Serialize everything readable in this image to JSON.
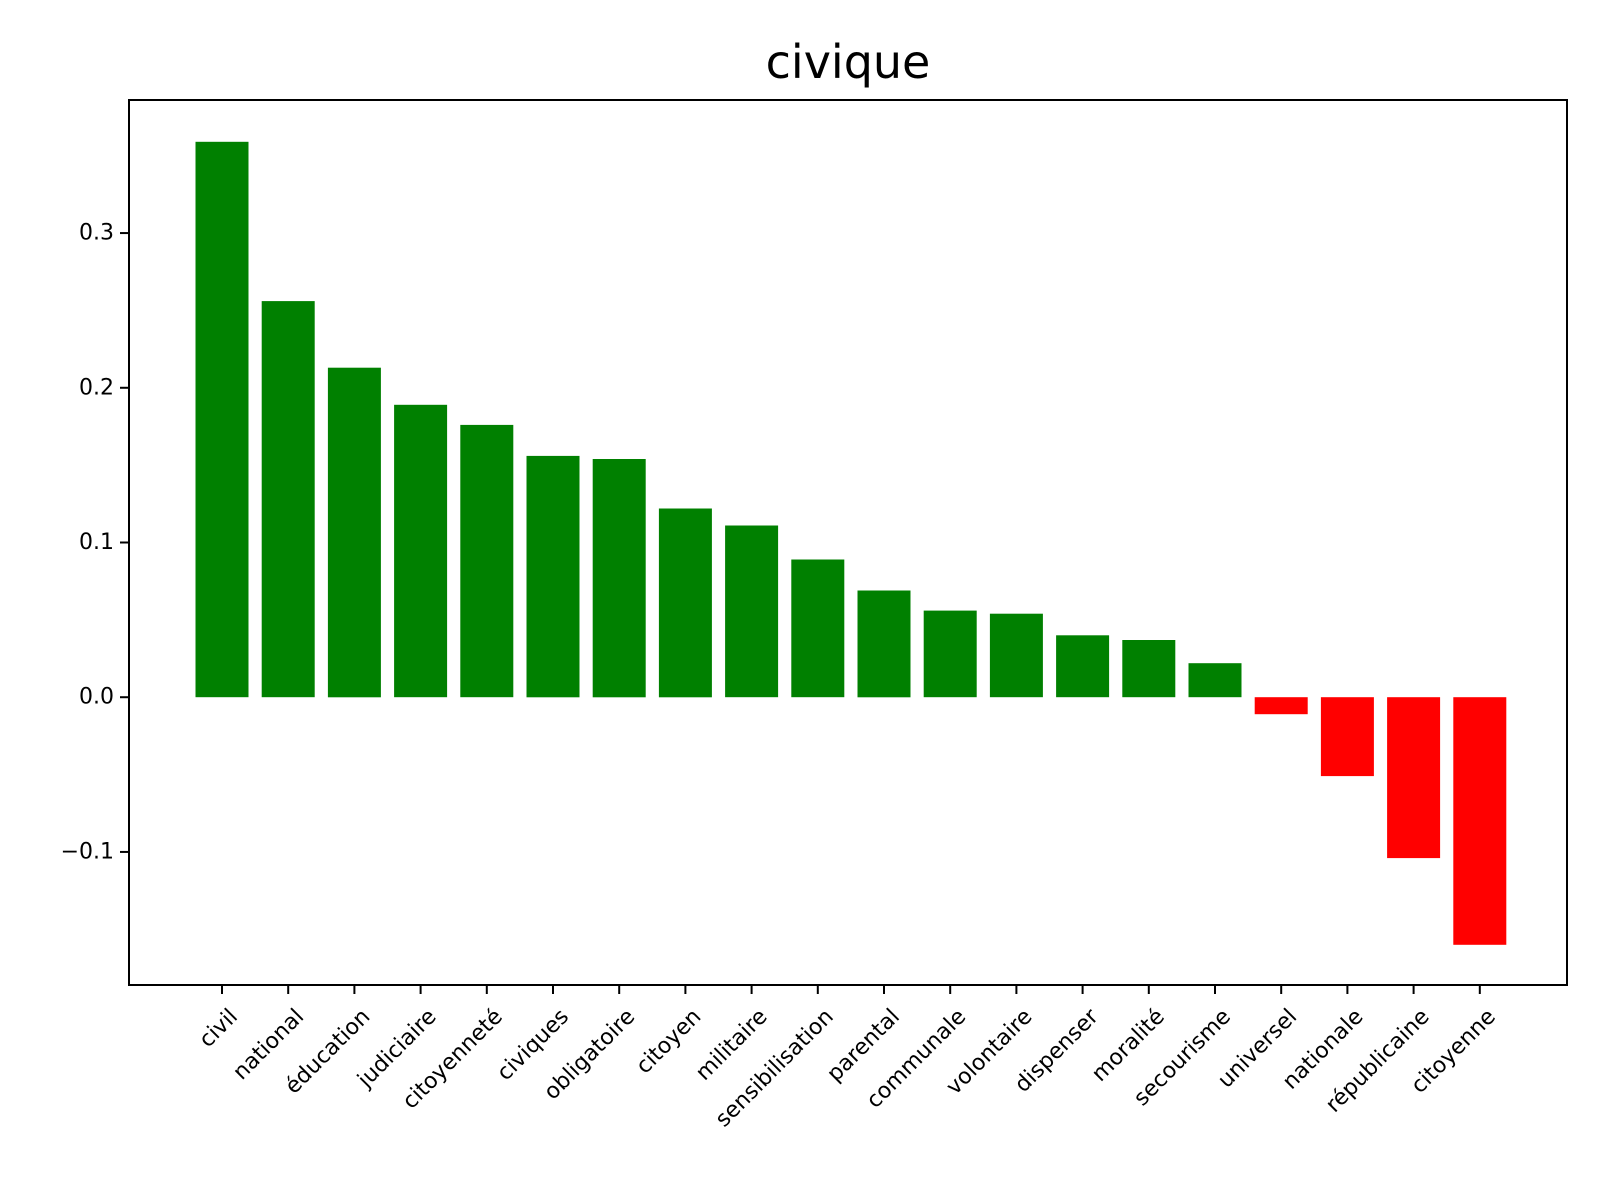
{
  "chart_data": {
    "type": "bar",
    "title": "civique",
    "xlabel": "",
    "ylabel": "",
    "ylim": [
      -0.186,
      0.386
    ],
    "yticks": [
      -0.1,
      0.0,
      0.1,
      0.2,
      0.3
    ],
    "ytick_labels": [
      "−0.1",
      "0.0",
      "0.1",
      "0.2",
      "0.3"
    ],
    "grid": false,
    "positive_color": "#008000",
    "negative_color": "#ff0000",
    "categories": [
      "civil",
      "national",
      "éducation",
      "judiciaire",
      "citoyenneté",
      "civiques",
      "obligatoire",
      "citoyen",
      "militaire",
      "sensibilisation",
      "parental",
      "communale",
      "volontaire",
      "dispenser",
      "moralité",
      "secourisme",
      "universel",
      "nationale",
      "républicaine",
      "citoyenne"
    ],
    "values": [
      0.359,
      0.256,
      0.213,
      0.189,
      0.176,
      0.156,
      0.154,
      0.122,
      0.111,
      0.089,
      0.069,
      0.056,
      0.054,
      0.04,
      0.037,
      0.022,
      -0.011,
      -0.051,
      -0.104,
      -0.16
    ]
  }
}
